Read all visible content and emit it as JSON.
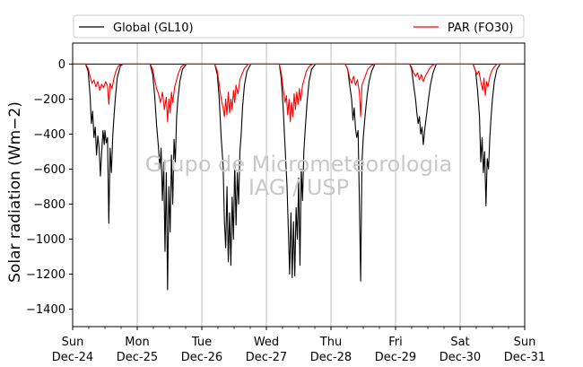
{
  "chart_data": {
    "type": "line",
    "ylabel": "Solar radiation (Wm−2)",
    "watermark": [
      "Grupo de Micrometeorologia",
      "IAG / USP"
    ],
    "ylim": [
      -1500,
      120
    ],
    "xlim_days": [
      0,
      7
    ],
    "y_ticks": [
      0,
      -200,
      -400,
      -600,
      -800,
      -1000,
      -1200,
      -1400
    ],
    "x_ticks": [
      {
        "day": 0,
        "weekday": "Sun",
        "date": "Dec-24"
      },
      {
        "day": 1,
        "weekday": "Mon",
        "date": "Dec-25"
      },
      {
        "day": 2,
        "weekday": "Tue",
        "date": "Dec-26"
      },
      {
        "day": 3,
        "weekday": "Wed",
        "date": "Dec-27"
      },
      {
        "day": 4,
        "weekday": "Thu",
        "date": "Dec-28"
      },
      {
        "day": 5,
        "weekday": "Fri",
        "date": "Dec-29"
      },
      {
        "day": 6,
        "weekday": "Sat",
        "date": "Dec-30"
      },
      {
        "day": 7,
        "weekday": "Sun",
        "date": "Dec-31"
      }
    ],
    "grid": "vertical",
    "legend_position": "top",
    "series": [
      {
        "name": "Global (GL10)",
        "color": "#000000",
        "points": [
          [
            0.0,
            0
          ],
          [
            0.2,
            0
          ],
          [
            0.24,
            -40
          ],
          [
            0.27,
            -180
          ],
          [
            0.29,
            -340
          ],
          [
            0.31,
            -270
          ],
          [
            0.33,
            -420
          ],
          [
            0.35,
            -360
          ],
          [
            0.37,
            -520
          ],
          [
            0.39,
            -410
          ],
          [
            0.41,
            -480
          ],
          [
            0.43,
            -640
          ],
          [
            0.45,
            -500
          ],
          [
            0.47,
            -380
          ],
          [
            0.49,
            -460
          ],
          [
            0.5,
            -380
          ],
          [
            0.52,
            -450
          ],
          [
            0.54,
            -420
          ],
          [
            0.56,
            -910
          ],
          [
            0.58,
            -480
          ],
          [
            0.6,
            -620
          ],
          [
            0.62,
            -420
          ],
          [
            0.64,
            -300
          ],
          [
            0.66,
            -200
          ],
          [
            0.69,
            -80
          ],
          [
            0.74,
            -10
          ],
          [
            0.78,
            0
          ],
          [
            1.2,
            0
          ],
          [
            1.24,
            -60
          ],
          [
            1.27,
            -180
          ],
          [
            1.3,
            -350
          ],
          [
            1.33,
            -480
          ],
          [
            1.35,
            -600
          ],
          [
            1.37,
            -480
          ],
          [
            1.39,
            -780
          ],
          [
            1.41,
            -560
          ],
          [
            1.43,
            -1070
          ],
          [
            1.45,
            -620
          ],
          [
            1.47,
            -1290
          ],
          [
            1.49,
            -700
          ],
          [
            1.51,
            -960
          ],
          [
            1.53,
            -520
          ],
          [
            1.55,
            -800
          ],
          [
            1.57,
            -430
          ],
          [
            1.59,
            -560
          ],
          [
            1.61,
            -300
          ],
          [
            1.63,
            -200
          ],
          [
            1.66,
            -100
          ],
          [
            1.7,
            -30
          ],
          [
            1.76,
            0
          ],
          [
            2.2,
            0
          ],
          [
            2.24,
            -60
          ],
          [
            2.27,
            -200
          ],
          [
            2.3,
            -420
          ],
          [
            2.33,
            -580
          ],
          [
            2.35,
            -900
          ],
          [
            2.37,
            -1050
          ],
          [
            2.39,
            -700
          ],
          [
            2.41,
            -1130
          ],
          [
            2.43,
            -850
          ],
          [
            2.45,
            -1150
          ],
          [
            2.47,
            -760
          ],
          [
            2.49,
            -1000
          ],
          [
            2.51,
            -560
          ],
          [
            2.53,
            -920
          ],
          [
            2.55,
            -620
          ],
          [
            2.57,
            -800
          ],
          [
            2.59,
            -500
          ],
          [
            2.61,
            -400
          ],
          [
            2.63,
            -250
          ],
          [
            2.66,
            -120
          ],
          [
            2.7,
            -40
          ],
          [
            2.76,
            0
          ],
          [
            3.2,
            0
          ],
          [
            3.23,
            -80
          ],
          [
            3.26,
            -250
          ],
          [
            3.29,
            -480
          ],
          [
            3.32,
            -700
          ],
          [
            3.34,
            -950
          ],
          [
            3.36,
            -1200
          ],
          [
            3.38,
            -850
          ],
          [
            3.4,
            -1220
          ],
          [
            3.42,
            -900
          ],
          [
            3.44,
            -1210
          ],
          [
            3.46,
            -820
          ],
          [
            3.48,
            -1000
          ],
          [
            3.5,
            -650
          ],
          [
            3.52,
            -1150
          ],
          [
            3.54,
            -600
          ],
          [
            3.56,
            -780
          ],
          [
            3.58,
            -500
          ],
          [
            3.6,
            -380
          ],
          [
            3.63,
            -220
          ],
          [
            3.66,
            -100
          ],
          [
            3.7,
            -30
          ],
          [
            3.76,
            0
          ],
          [
            4.22,
            0
          ],
          [
            4.26,
            -30
          ],
          [
            4.29,
            -120
          ],
          [
            4.32,
            -200
          ],
          [
            4.34,
            -320
          ],
          [
            4.36,
            -250
          ],
          [
            4.38,
            -370
          ],
          [
            4.4,
            -420
          ],
          [
            4.42,
            -380
          ],
          [
            4.44,
            -780
          ],
          [
            4.46,
            -1240
          ],
          [
            4.48,
            -560
          ],
          [
            4.5,
            -420
          ],
          [
            4.52,
            -330
          ],
          [
            4.54,
            -250
          ],
          [
            4.56,
            -180
          ],
          [
            4.59,
            -100
          ],
          [
            4.63,
            -40
          ],
          [
            4.68,
            0
          ],
          [
            5.22,
            0
          ],
          [
            5.25,
            -30
          ],
          [
            5.28,
            -120
          ],
          [
            5.31,
            -200
          ],
          [
            5.33,
            -280
          ],
          [
            5.35,
            -340
          ],
          [
            5.37,
            -300
          ],
          [
            5.39,
            -400
          ],
          [
            5.41,
            -360
          ],
          [
            5.43,
            -460
          ],
          [
            5.45,
            -380
          ],
          [
            5.47,
            -320
          ],
          [
            5.49,
            -260
          ],
          [
            5.51,
            -200
          ],
          [
            5.54,
            -120
          ],
          [
            5.58,
            -50
          ],
          [
            5.63,
            0
          ],
          [
            6.2,
            0
          ],
          [
            6.24,
            -40
          ],
          [
            6.27,
            -150
          ],
          [
            6.3,
            -300
          ],
          [
            6.32,
            -560
          ],
          [
            6.34,
            -420
          ],
          [
            6.36,
            -620
          ],
          [
            6.38,
            -500
          ],
          [
            6.4,
            -810
          ],
          [
            6.42,
            -540
          ],
          [
            6.44,
            -600
          ],
          [
            6.46,
            -420
          ],
          [
            6.48,
            -300
          ],
          [
            6.5,
            -200
          ],
          [
            6.53,
            -100
          ],
          [
            6.57,
            -30
          ],
          [
            6.62,
            0
          ],
          [
            7.0,
            0
          ]
        ]
      },
      {
        "name": "PAR (FO30)",
        "color": "#ff0000",
        "points": [
          [
            0.0,
            0
          ],
          [
            0.2,
            0
          ],
          [
            0.24,
            -25
          ],
          [
            0.27,
            -70
          ],
          [
            0.3,
            -110
          ],
          [
            0.33,
            -90
          ],
          [
            0.36,
            -130
          ],
          [
            0.39,
            -100
          ],
          [
            0.42,
            -150
          ],
          [
            0.45,
            -115
          ],
          [
            0.48,
            -135
          ],
          [
            0.51,
            -100
          ],
          [
            0.54,
            -125
          ],
          [
            0.56,
            -230
          ],
          [
            0.58,
            -110
          ],
          [
            0.61,
            -140
          ],
          [
            0.64,
            -80
          ],
          [
            0.67,
            -40
          ],
          [
            0.71,
            -10
          ],
          [
            0.76,
            0
          ],
          [
            1.2,
            0
          ],
          [
            1.24,
            -30
          ],
          [
            1.27,
            -90
          ],
          [
            1.3,
            -140
          ],
          [
            1.33,
            -170
          ],
          [
            1.36,
            -220
          ],
          [
            1.39,
            -160
          ],
          [
            1.42,
            -260
          ],
          [
            1.45,
            -190
          ],
          [
            1.47,
            -330
          ],
          [
            1.49,
            -200
          ],
          [
            1.51,
            -280
          ],
          [
            1.53,
            -160
          ],
          [
            1.55,
            -220
          ],
          [
            1.58,
            -130
          ],
          [
            1.61,
            -90
          ],
          [
            1.64,
            -50
          ],
          [
            1.68,
            -15
          ],
          [
            1.74,
            0
          ],
          [
            2.2,
            0
          ],
          [
            2.24,
            -40
          ],
          [
            2.27,
            -120
          ],
          [
            2.3,
            -200
          ],
          [
            2.33,
            -250
          ],
          [
            2.35,
            -300
          ],
          [
            2.37,
            -200
          ],
          [
            2.39,
            -290
          ],
          [
            2.41,
            -160
          ],
          [
            2.43,
            -280
          ],
          [
            2.45,
            -200
          ],
          [
            2.47,
            -260
          ],
          [
            2.49,
            -150
          ],
          [
            2.51,
            -220
          ],
          [
            2.53,
            -120
          ],
          [
            2.56,
            -170
          ],
          [
            2.59,
            -90
          ],
          [
            2.62,
            -60
          ],
          [
            2.66,
            -25
          ],
          [
            2.72,
            0
          ],
          [
            3.2,
            0
          ],
          [
            3.23,
            -50
          ],
          [
            3.26,
            -140
          ],
          [
            3.29,
            -220
          ],
          [
            3.31,
            -180
          ],
          [
            3.33,
            -290
          ],
          [
            3.35,
            -200
          ],
          [
            3.37,
            -330
          ],
          [
            3.39,
            -220
          ],
          [
            3.41,
            -300
          ],
          [
            3.43,
            -170
          ],
          [
            3.45,
            -260
          ],
          [
            3.47,
            -160
          ],
          [
            3.49,
            -230
          ],
          [
            3.51,
            -140
          ],
          [
            3.53,
            -210
          ],
          [
            3.56,
            -120
          ],
          [
            3.59,
            -80
          ],
          [
            3.62,
            -40
          ],
          [
            3.67,
            -10
          ],
          [
            3.72,
            0
          ],
          [
            4.22,
            0
          ],
          [
            4.26,
            -30
          ],
          [
            4.29,
            -80
          ],
          [
            4.32,
            -110
          ],
          [
            4.35,
            -70
          ],
          [
            4.38,
            -120
          ],
          [
            4.41,
            -90
          ],
          [
            4.44,
            -160
          ],
          [
            4.46,
            -300
          ],
          [
            4.48,
            -120
          ],
          [
            4.51,
            -90
          ],
          [
            4.54,
            -60
          ],
          [
            4.57,
            -30
          ],
          [
            4.62,
            -10
          ],
          [
            4.67,
            0
          ],
          [
            5.22,
            0
          ],
          [
            5.25,
            -20
          ],
          [
            5.28,
            -50
          ],
          [
            5.31,
            -70
          ],
          [
            5.34,
            -50
          ],
          [
            5.37,
            -90
          ],
          [
            5.4,
            -60
          ],
          [
            5.43,
            -100
          ],
          [
            5.46,
            -70
          ],
          [
            5.49,
            -50
          ],
          [
            5.52,
            -30
          ],
          [
            5.56,
            -10
          ],
          [
            5.61,
            0
          ],
          [
            6.2,
            0
          ],
          [
            6.23,
            -30
          ],
          [
            6.26,
            -60
          ],
          [
            6.29,
            -40
          ],
          [
            6.32,
            -100
          ],
          [
            6.35,
            -150
          ],
          [
            6.37,
            -80
          ],
          [
            6.39,
            -180
          ],
          [
            6.41,
            -100
          ],
          [
            6.43,
            -130
          ],
          [
            6.46,
            -70
          ],
          [
            6.49,
            -40
          ],
          [
            6.52,
            -20
          ],
          [
            6.57,
            0
          ],
          [
            7.0,
            0
          ]
        ]
      }
    ]
  }
}
